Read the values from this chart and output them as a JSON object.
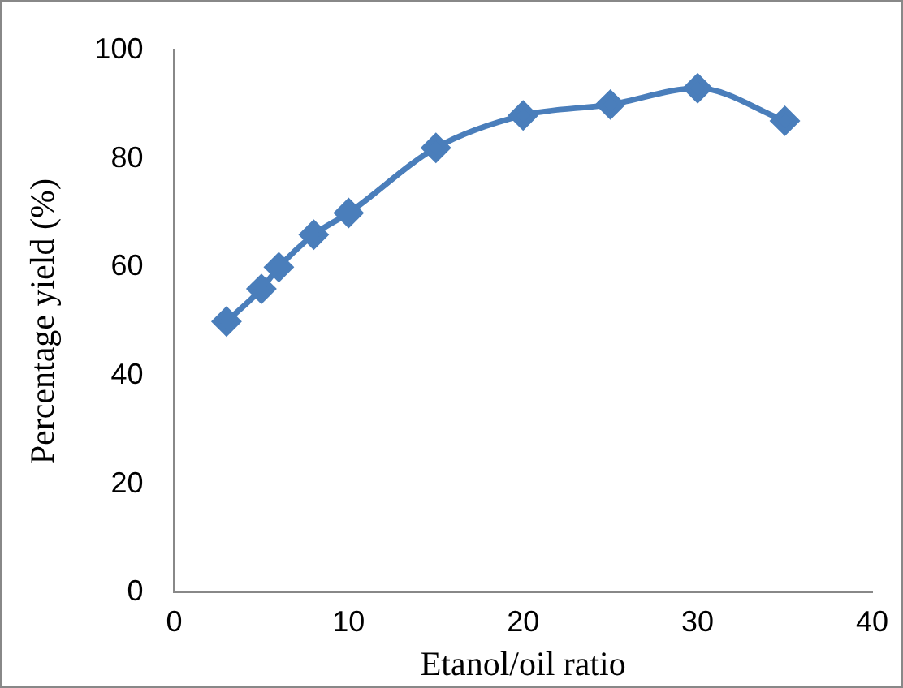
{
  "chart_data": {
    "type": "line",
    "xlabel": "Etanol/oil ratio",
    "ylabel": "Percentage yield (%)",
    "x": [
      3,
      5,
      6,
      8,
      10,
      15,
      20,
      25,
      30,
      35
    ],
    "series": [
      {
        "color": "#4a7ebb",
        "values": [
          50,
          56,
          60,
          66,
          70,
          82,
          88,
          90,
          93,
          87
        ]
      }
    ],
    "xlim": [
      0,
      40
    ],
    "xticks": [
      0,
      10,
      20,
      30,
      40
    ],
    "ylim": [
      0,
      100
    ],
    "yticks": [
      0,
      20,
      40,
      60,
      80,
      100
    ],
    "grid": false,
    "legend": false,
    "marker": "diamond",
    "line_style": "solid"
  }
}
